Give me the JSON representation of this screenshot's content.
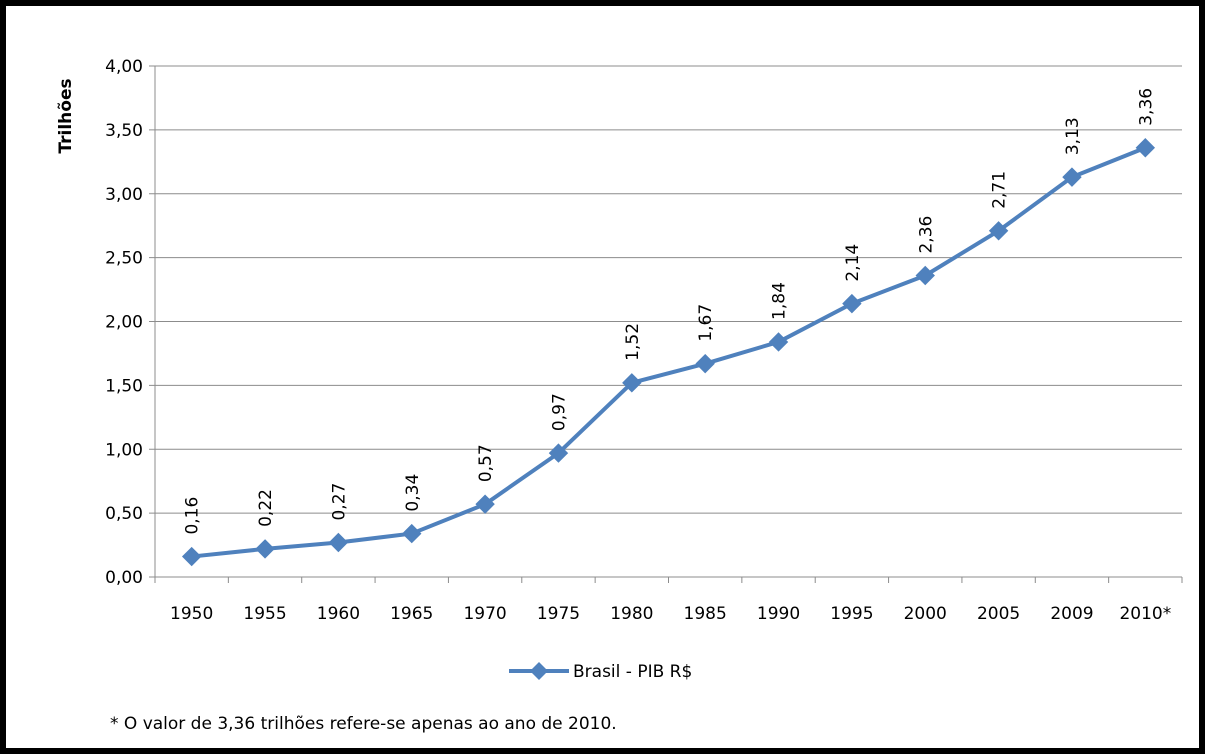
{
  "chart_data": {
    "type": "line",
    "title": "",
    "xlabel": "",
    "ylabel": "Trilhões",
    "categories": [
      "1950",
      "1955",
      "1960",
      "1965",
      "1970",
      "1975",
      "1980",
      "1985",
      "1990",
      "1995",
      "2000",
      "2005",
      "2009",
      "2010*"
    ],
    "series": [
      {
        "name": "Brasil - PIB R$",
        "values": [
          0.16,
          0.22,
          0.27,
          0.34,
          0.57,
          0.97,
          1.52,
          1.67,
          1.84,
          2.14,
          2.36,
          2.71,
          3.13,
          3.36
        ],
        "data_labels": [
          "0,16",
          "0,22",
          "0,27",
          "0,34",
          "0,57",
          "0,97",
          "1,52",
          "1,67",
          "1,84",
          "2,14",
          "2,36",
          "2,71",
          "3,13",
          "3,36"
        ],
        "color": "#4f81bd"
      }
    ],
    "ylim": [
      0,
      4
    ],
    "yticks": [
      "0,00",
      "0,50",
      "1,00",
      "1,50",
      "2,00",
      "2,50",
      "3,00",
      "3,50",
      "4,00"
    ],
    "grid": true,
    "legend_position": "bottom",
    "footnote": "* O valor de 3,36 trilhões refere-se  apenas ao ano de 2010."
  }
}
